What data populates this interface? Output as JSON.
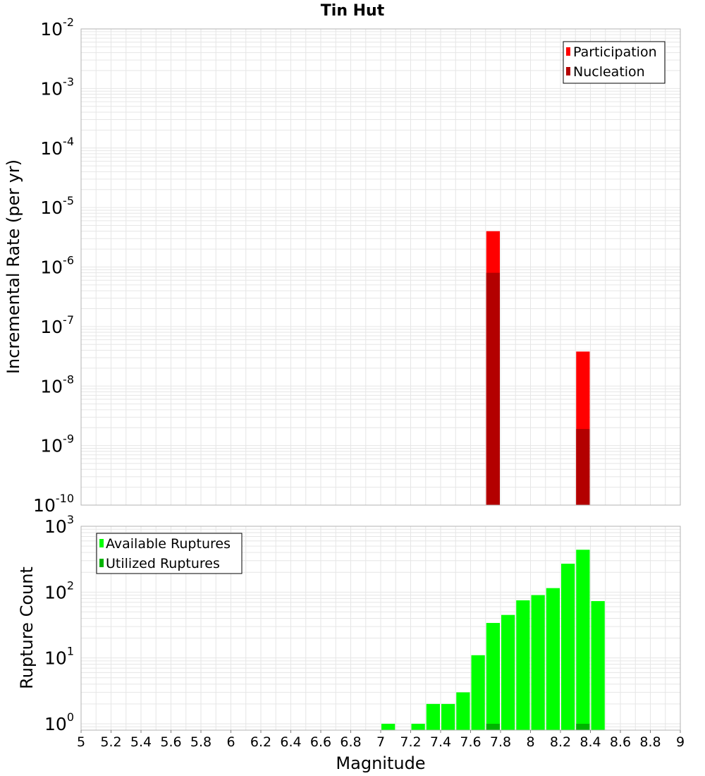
{
  "title": "Tin Hut",
  "colors": {
    "participation": "#ff0000",
    "nucleation": "#b30000",
    "available": "#00ff00",
    "utilized": "#00b300",
    "grid": "#e6e6e6",
    "frame": "#b3b3b3"
  },
  "chart_data": [
    {
      "type": "bar",
      "ylabel": "Incremental Rate (per yr)",
      "yscale": "log",
      "ylim": [
        1e-10,
        0.01
      ],
      "xlim": [
        5,
        9
      ],
      "grid": true,
      "legend_position": "top-right",
      "legend": [
        "Participation",
        "Nucleation"
      ],
      "series": [
        {
          "name": "Participation",
          "x": [
            7.75,
            8.35
          ],
          "values": [
            4e-06,
            3.8e-08
          ]
        },
        {
          "name": "Nucleation",
          "x": [
            7.75,
            8.35
          ],
          "values": [
            8e-07,
            1.9e-09
          ]
        }
      ],
      "y_ticks": [
        {
          "base": "10",
          "exp": "-2"
        },
        {
          "base": "10",
          "exp": "-3"
        },
        {
          "base": "10",
          "exp": "-4"
        },
        {
          "base": "10",
          "exp": "-5"
        },
        {
          "base": "10",
          "exp": "-6"
        },
        {
          "base": "10",
          "exp": "-7"
        },
        {
          "base": "10",
          "exp": "-8"
        },
        {
          "base": "10",
          "exp": "-9"
        },
        {
          "base": "10",
          "exp": "-10"
        }
      ]
    },
    {
      "type": "bar",
      "ylabel": "Rupture Count",
      "xlabel": "Magnitude",
      "yscale": "log",
      "ylim": [
        0.8,
        1000
      ],
      "xlim": [
        5,
        9
      ],
      "grid": true,
      "legend_position": "top-left",
      "legend": [
        "Available Ruptures",
        "Utilized Ruptures"
      ],
      "series": [
        {
          "name": "Available Ruptures",
          "x": [
            7.05,
            7.25,
            7.35,
            7.45,
            7.55,
            7.65,
            7.75,
            7.85,
            7.95,
            8.05,
            8.15,
            8.25,
            8.35,
            8.45
          ],
          "values": [
            1,
            1,
            2,
            2,
            3,
            11,
            34,
            45,
            75,
            90,
            115,
            270,
            440,
            73
          ]
        },
        {
          "name": "Utilized Ruptures",
          "x": [
            7.75,
            8.35
          ],
          "values": [
            1,
            1
          ]
        }
      ],
      "y_ticks": [
        {
          "base": "10",
          "exp": "3"
        },
        {
          "base": "10",
          "exp": "2"
        },
        {
          "base": "10",
          "exp": "1"
        },
        {
          "base": "10",
          "exp": "0"
        }
      ],
      "x_ticks": [
        "5",
        "5.2",
        "5.4",
        "5.6",
        "5.8",
        "6",
        "6.2",
        "6.4",
        "6.6",
        "6.8",
        "7",
        "7.2",
        "7.4",
        "7.6",
        "7.8",
        "8",
        "8.2",
        "8.4",
        "8.6",
        "8.8",
        "9"
      ]
    }
  ]
}
